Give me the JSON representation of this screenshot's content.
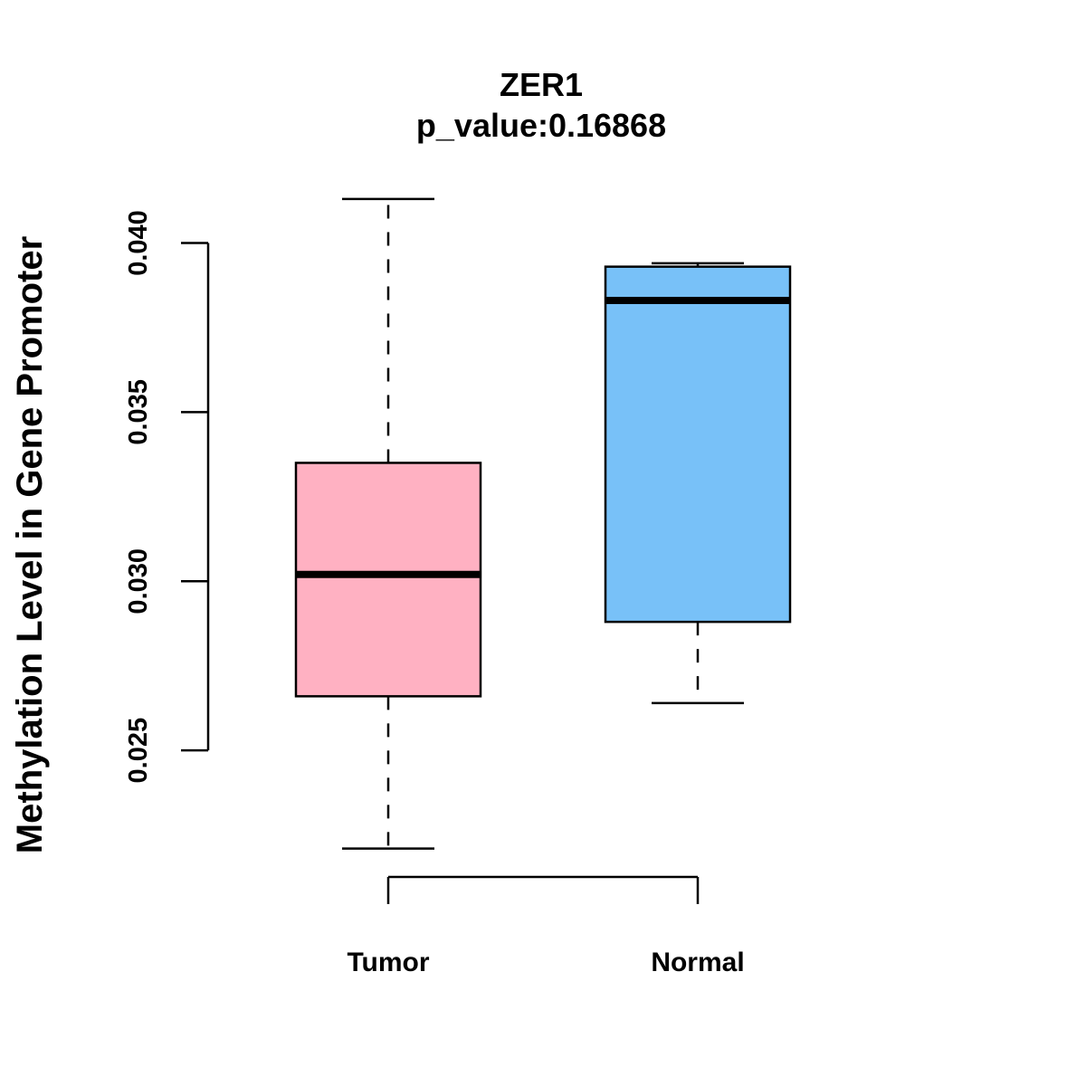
{
  "chart_data": {
    "type": "box",
    "title": "ZER1",
    "subtitle": "p_value:0.16868",
    "xlabel": "",
    "ylabel": "Methylation Level in Gene Promoter",
    "ylim": [
      0.0215,
      0.0421
    ],
    "yticks": [
      0.025,
      0.03,
      0.035,
      0.04
    ],
    "ytick_labels": [
      "0.025",
      "0.030",
      "0.035",
      "0.040"
    ],
    "grid": false,
    "categories": [
      "Tumor",
      "Normal"
    ],
    "boxes": [
      {
        "category": "Tumor",
        "color": "#FFB1C2",
        "whisker_low": 0.0221,
        "q1": 0.0266,
        "median": 0.0302,
        "q3": 0.0335,
        "whisker_high": 0.0413
      },
      {
        "category": "Normal",
        "color": "#78C1F8",
        "whisker_low": 0.0264,
        "q1": 0.0288,
        "median": 0.0383,
        "q3": 0.0393,
        "whisker_high": 0.0394
      }
    ]
  }
}
